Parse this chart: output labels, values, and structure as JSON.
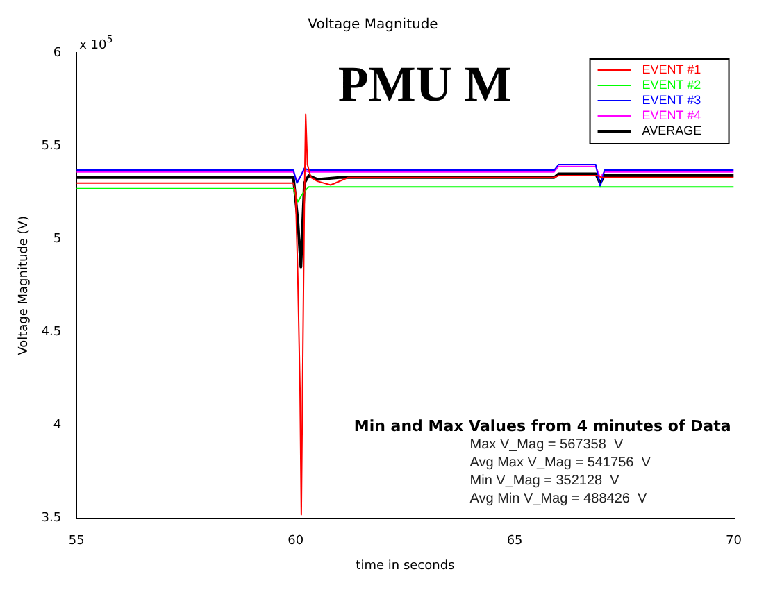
{
  "chart_data": {
    "type": "line",
    "title": "Voltage Magnitude",
    "xlabel": "time in seconds",
    "ylabel": "Voltage Magnitude (V)",
    "annotations": [
      "x 10$^{5}$",
      "PMU M",
      "Min and Max Values from 4 minutes of Data",
      "Max V_Mag = 567358  V",
      "Avg Max V_Mag = 541756  V",
      "Min V_Mag = 352128  V",
      "Avg Min V_Mag = 488426  V"
    ],
    "xlim": [
      55,
      70
    ],
    "xticks": [
      55,
      60,
      65,
      70
    ],
    "ylim": [
      3.5,
      6
    ],
    "yticks": [
      3.5,
      4,
      4.5,
      5,
      5.5,
      6
    ],
    "grid": false,
    "legend": "top right",
    "marker": "none",
    "line_style": "solid",
    "series": [
      {
        "name": "EVENT #1",
        "color": "#ff0000",
        "x": [
          55,
          59.95,
          60.0,
          60.05,
          60.1,
          60.13,
          60.17,
          60.2,
          60.23,
          60.27,
          60.35,
          60.5,
          60.8,
          61.2,
          65.9,
          66.0,
          66.9,
          67,
          70
        ],
        "values": [
          5.3,
          5.3,
          5.25,
          4.8,
          4.2,
          3.52,
          4.5,
          5.2,
          5.67,
          5.4,
          5.33,
          5.31,
          5.29,
          5.33,
          5.33,
          5.34,
          5.34,
          5.33,
          5.33
        ]
      },
      {
        "name": "EVENT #2",
        "color": "#00ff00",
        "x": [
          55,
          59.95,
          60.05,
          60.15,
          60.3,
          61,
          70
        ],
        "values": [
          5.27,
          5.27,
          5.2,
          5.24,
          5.28,
          5.28,
          5.28
        ]
      },
      {
        "name": "EVENT #3",
        "color": "#0000ff",
        "x": [
          55,
          59.95,
          60.03,
          60.1,
          60.2,
          60.3,
          65.9,
          66.0,
          66.85,
          66.95,
          67.05,
          70
        ],
        "values": [
          5.37,
          5.37,
          5.3,
          5.33,
          5.38,
          5.37,
          5.37,
          5.4,
          5.4,
          5.28,
          5.37,
          5.37
        ]
      },
      {
        "name": "EVENT #4",
        "color": "#ff00ff",
        "x": [
          55,
          59.95,
          60.03,
          60.1,
          60.2,
          60.3,
          65.9,
          66.0,
          66.85,
          66.95,
          67.05,
          70
        ],
        "values": [
          5.36,
          5.36,
          5.31,
          5.33,
          5.37,
          5.36,
          5.36,
          5.39,
          5.39,
          5.33,
          5.36,
          5.36
        ]
      },
      {
        "name": "AVERAGE",
        "color": "#000000",
        "x": [
          55,
          59.95,
          60.05,
          60.12,
          60.2,
          60.3,
          60.5,
          61,
          65.9,
          66,
          66.85,
          66.95,
          67.05,
          70
        ],
        "values": [
          5.33,
          5.33,
          5.1,
          4.85,
          5.3,
          5.34,
          5.32,
          5.33,
          5.33,
          5.35,
          5.35,
          5.3,
          5.34,
          5.34
        ]
      }
    ]
  }
}
